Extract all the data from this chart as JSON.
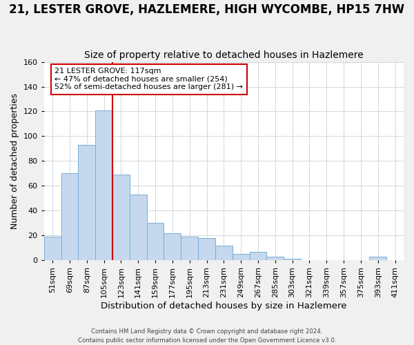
{
  "title": "21, LESTER GROVE, HAZLEMERE, HIGH WYCOMBE, HP15 7HW",
  "subtitle": "Size of property relative to detached houses in Hazlemere",
  "xlabel": "Distribution of detached houses by size in Hazlemere",
  "ylabel": "Number of detached properties",
  "bar_labels": [
    "51sqm",
    "69sqm",
    "87sqm",
    "105sqm",
    "123sqm",
    "141sqm",
    "159sqm",
    "177sqm",
    "195sqm",
    "213sqm",
    "231sqm",
    "249sqm",
    "267sqm",
    "285sqm",
    "303sqm",
    "321sqm",
    "339sqm",
    "357sqm",
    "375sqm",
    "393sqm",
    "411sqm"
  ],
  "bar_values": [
    19,
    70,
    93,
    121,
    69,
    53,
    30,
    22,
    19,
    18,
    12,
    5,
    7,
    3,
    1,
    0,
    0,
    0,
    0,
    3,
    0
  ],
  "bar_color": "#c5d8ed",
  "bar_edgecolor": "#7aadd4",
  "vline_color": "#cc0000",
  "annotation_line1": "21 LESTER GROVE: 117sqm",
  "annotation_line2": "← 47% of detached houses are smaller (254)",
  "annotation_line3": "52% of semi-detached houses are larger (281) →",
  "annotation_box_edgecolor": "#cc0000",
  "ylim": [
    0,
    160
  ],
  "yticks": [
    0,
    20,
    40,
    60,
    80,
    100,
    120,
    140,
    160
  ],
  "title_fontsize": 12,
  "subtitle_fontsize": 10,
  "xlabel_fontsize": 9.5,
  "ylabel_fontsize": 9,
  "tick_fontsize": 8,
  "footer_line1": "Contains HM Land Registry data © Crown copyright and database right 2024.",
  "footer_line2": "Contains public sector information licensed under the Open Government Licence v3.0.",
  "background_color": "#f0f0f0",
  "plot_bg_color": "#ffffff",
  "grid_color": "#d0d8e0"
}
